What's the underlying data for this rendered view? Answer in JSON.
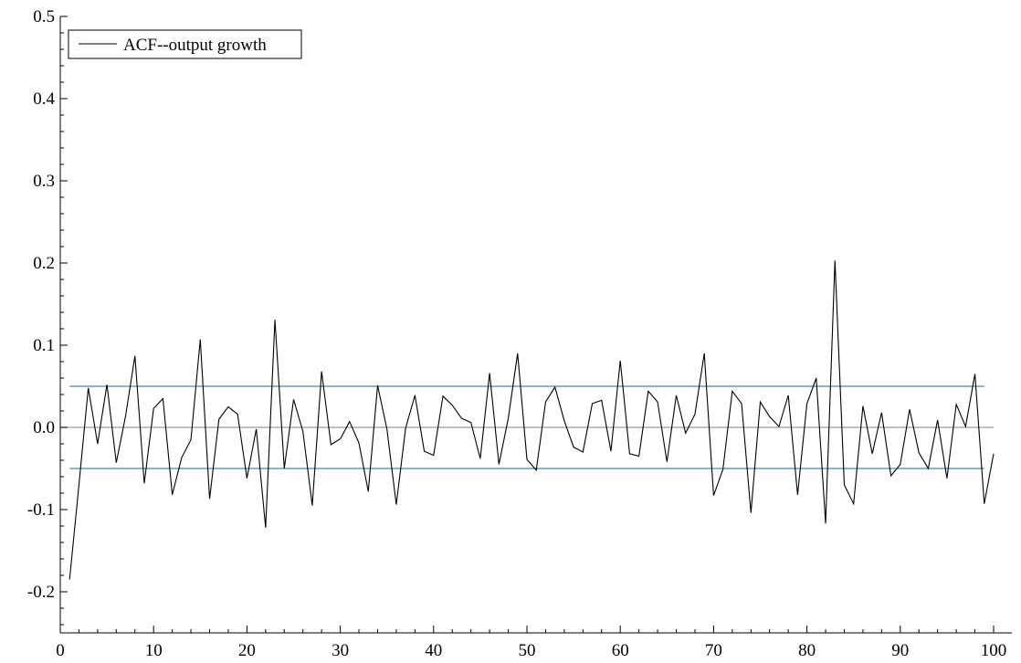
{
  "chart_data": {
    "type": "line",
    "title": "",
    "xlabel": "",
    "ylabel": "",
    "xlim": [
      0,
      100
    ],
    "ylim": [
      -0.25,
      0.5
    ],
    "xticks": [
      0,
      10,
      20,
      30,
      40,
      50,
      60,
      70,
      80,
      90,
      100
    ],
    "xtick_labels": [
      "0",
      "10",
      "20",
      "30",
      "40",
      "50",
      "60",
      "70",
      "80",
      "90",
      "100"
    ],
    "yticks": [
      -0.2,
      -0.1,
      0.0,
      0.1,
      0.2,
      0.3,
      0.4,
      0.5
    ],
    "ytick_labels": [
      "-0.2",
      "-0.1",
      "0.0",
      "0.1",
      "0.2",
      "0.3",
      "0.4",
      "0.5"
    ],
    "grid": false,
    "legend_position": "top-left",
    "series": [
      {
        "name": "ACF--output growth",
        "color": "#000000",
        "x": [
          1,
          2,
          3,
          4,
          5,
          6,
          7,
          8,
          9,
          10,
          11,
          12,
          13,
          14,
          15,
          16,
          17,
          18,
          19,
          20,
          21,
          22,
          23,
          24,
          25,
          26,
          27,
          28,
          29,
          30,
          31,
          32,
          33,
          34,
          35,
          36,
          37,
          38,
          39,
          40,
          41,
          42,
          43,
          44,
          45,
          46,
          47,
          48,
          49,
          50,
          51,
          52,
          53,
          54,
          55,
          56,
          57,
          58,
          59,
          60,
          61,
          62,
          63,
          64,
          65,
          66,
          67,
          68,
          69,
          70,
          71,
          72,
          73,
          74,
          75,
          76,
          77,
          78,
          79,
          80,
          81,
          82,
          83,
          84,
          85,
          86,
          87,
          88,
          89,
          90,
          91,
          92,
          93,
          94,
          95,
          96,
          97,
          98,
          99,
          100
        ],
        "values": [
          -0.185,
          -0.07,
          0.048,
          -0.02,
          0.052,
          -0.043,
          0.014,
          0.087,
          -0.068,
          0.023,
          0.035,
          -0.082,
          -0.037,
          -0.015,
          0.107,
          -0.087,
          0.01,
          0.025,
          0.016,
          -0.062,
          -0.002,
          -0.122,
          0.131,
          -0.05,
          0.034,
          -0.005,
          -0.095,
          0.068,
          -0.021,
          -0.014,
          0.007,
          -0.019,
          -0.078,
          0.051,
          -0.002,
          -0.094,
          -0.001,
          0.039,
          -0.029,
          -0.034,
          0.038,
          0.027,
          0.011,
          0.006,
          -0.038,
          0.066,
          -0.045,
          0.011,
          0.09,
          -0.039,
          -0.052,
          0.031,
          0.049,
          0.008,
          -0.024,
          -0.03,
          0.029,
          0.033,
          -0.029,
          0.081,
          -0.032,
          -0.035,
          0.044,
          0.031,
          -0.042,
          0.039,
          -0.007,
          0.016,
          0.09,
          -0.083,
          -0.051,
          0.044,
          0.029,
          -0.104,
          0.031,
          0.013,
          0.001,
          0.039,
          -0.082,
          0.029,
          0.06,
          -0.117,
          0.203,
          -0.07,
          -0.093,
          0.026,
          -0.032,
          0.018,
          -0.059,
          -0.045,
          0.022,
          -0.031,
          -0.05,
          0.009,
          -0.062,
          0.028,
          0.001,
          0.065,
          -0.093,
          -0.032
        ]
      }
    ],
    "reference_lines": [
      {
        "y": 0.05,
        "x_from": 1,
        "x_to": 99,
        "color": "#3d8ea3"
      },
      {
        "y": -0.05,
        "x_from": 1,
        "x_to": 99,
        "color": "#3d8ea3"
      },
      {
        "y": 0.0,
        "x_from": 0,
        "x_to": 100,
        "color": "#9a9a9a"
      }
    ]
  }
}
